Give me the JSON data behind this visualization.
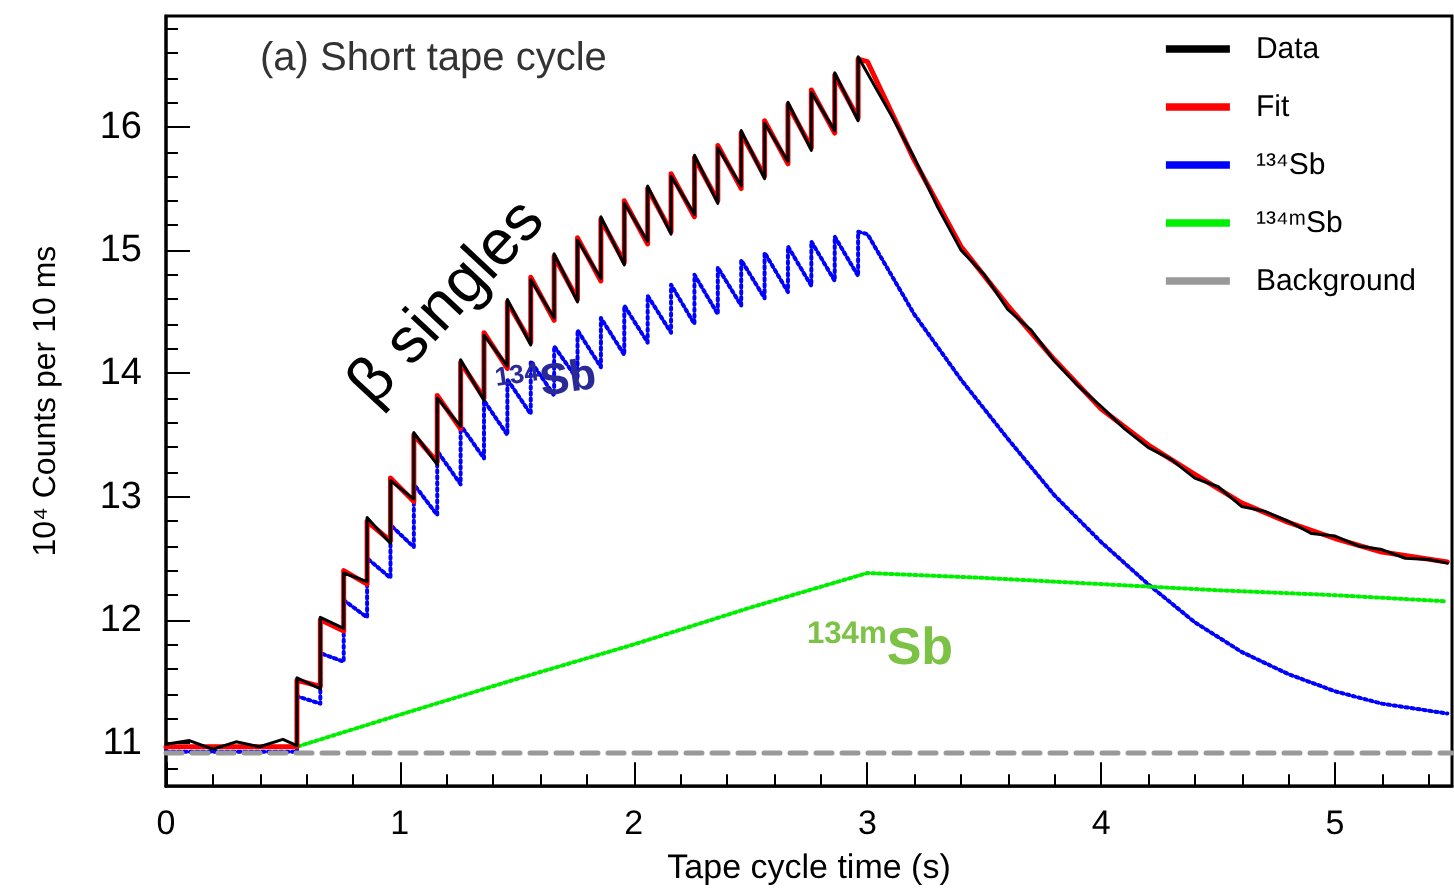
{
  "chart_data": {
    "type": "line",
    "title": "(a) Short tape cycle",
    "xlabel": "Tape cycle time (s)",
    "ylabel": "10⁴ Counts per 10 ms",
    "xlim": [
      0,
      5.5
    ],
    "ylim": [
      10.65,
      16.9
    ],
    "xticks": [
      0,
      1,
      2,
      3,
      4,
      5
    ],
    "yticks": [
      11,
      12,
      13,
      14,
      15,
      16
    ],
    "grid": false,
    "legend": "top right",
    "marker": "none",
    "annotations": [
      "β singles",
      "$^{134}$Sb",
      "$^{134m}$Sb"
    ],
    "series": [
      {
        "name": "Data",
        "color": "#000000",
        "line_style": "solid",
        "x": [
          0,
          0.1,
          0.2,
          0.3,
          0.4,
          0.5,
          0.56,
          0.56,
          0.66,
          0.66,
          0.76,
          0.76,
          0.86,
          0.86,
          0.96,
          0.96,
          1.06,
          1.06,
          1.16,
          1.16,
          1.26,
          1.26,
          1.36,
          1.36,
          1.46,
          1.46,
          1.56,
          1.56,
          1.66,
          1.66,
          1.76,
          1.76,
          1.86,
          1.86,
          1.96,
          1.96,
          2.06,
          2.06,
          2.16,
          2.16,
          2.26,
          2.26,
          2.36,
          2.36,
          2.46,
          2.46,
          2.56,
          2.56,
          2.66,
          2.66,
          2.76,
          2.76,
          2.86,
          2.86,
          2.96,
          2.96,
          3.1,
          3.2,
          3.3,
          3.4,
          3.5,
          3.6,
          3.7,
          3.8,
          3.9,
          4.0,
          4.1,
          4.2,
          4.3,
          4.4,
          4.5,
          4.6,
          4.7,
          4.8,
          4.9,
          5.0,
          5.1,
          5.2,
          5.3,
          5.4,
          5.48
        ],
        "values": [
          10.99,
          11.02,
          10.95,
          11.01,
          10.97,
          11.03,
          10.98,
          11.53,
          11.44,
          12.02,
          11.93,
          12.38,
          12.31,
          12.83,
          12.62,
          13.13,
          12.98,
          13.52,
          13.26,
          13.8,
          13.57,
          14.11,
          13.78,
          14.31,
          14.06,
          14.6,
          14.23,
          14.76,
          14.45,
          14.97,
          14.58,
          15.08,
          14.77,
          15.27,
          14.88,
          15.38,
          15.07,
          15.52,
          15.13,
          15.6,
          15.29,
          15.77,
          15.38,
          15.83,
          15.52,
          15.97,
          15.58,
          16.03,
          15.72,
          16.2,
          15.81,
          16.28,
          15.97,
          16.44,
          16.05,
          16.57,
          16.1,
          15.75,
          15.35,
          15.0,
          14.8,
          14.52,
          14.35,
          14.1,
          13.9,
          13.73,
          13.55,
          13.4,
          13.3,
          13.15,
          13.08,
          12.92,
          12.88,
          12.8,
          12.7,
          12.68,
          12.6,
          12.57,
          12.5,
          12.49,
          12.46
        ]
      },
      {
        "name": "Fit",
        "color": "#ff0000",
        "line_style": "solid",
        "x": [
          0,
          0.56,
          0.56,
          0.66,
          0.66,
          0.76,
          0.76,
          0.86,
          0.86,
          0.96,
          0.96,
          1.06,
          1.06,
          1.16,
          1.16,
          1.26,
          1.26,
          1.36,
          1.36,
          1.46,
          1.46,
          1.56,
          1.56,
          1.66,
          1.66,
          1.76,
          1.76,
          1.86,
          1.86,
          1.96,
          1.96,
          2.06,
          2.06,
          2.16,
          2.16,
          2.26,
          2.26,
          2.36,
          2.36,
          2.46,
          2.46,
          2.56,
          2.56,
          2.66,
          2.66,
          2.76,
          2.76,
          2.86,
          2.86,
          2.96,
          2.96,
          3.0,
          3.2,
          3.4,
          3.6,
          3.8,
          4.0,
          4.2,
          4.4,
          4.6,
          4.8,
          5.0,
          5.2,
          5.48
        ],
        "values": [
          10.97,
          10.97,
          11.51,
          11.46,
          12.0,
          11.91,
          12.4,
          12.29,
          12.8,
          12.64,
          13.15,
          12.96,
          13.5,
          13.28,
          13.82,
          13.55,
          14.09,
          13.8,
          14.33,
          14.04,
          14.58,
          14.25,
          14.78,
          14.43,
          14.95,
          14.6,
          15.1,
          14.75,
          15.25,
          14.9,
          15.4,
          15.05,
          15.5,
          15.15,
          15.62,
          15.27,
          15.75,
          15.4,
          15.85,
          15.5,
          15.95,
          15.6,
          16.05,
          15.7,
          16.18,
          15.83,
          16.3,
          15.95,
          16.42,
          16.07,
          16.55,
          16.53,
          15.73,
          15.03,
          14.55,
          14.11,
          13.71,
          13.42,
          13.18,
          12.95,
          12.79,
          12.66,
          12.55,
          12.47
        ]
      },
      {
        "name": "¹³⁴Sb",
        "color": "#0000ff",
        "line_style": "dotted",
        "x": [
          0,
          0.56,
          0.56,
          0.66,
          0.66,
          0.76,
          0.76,
          0.86,
          0.86,
          0.96,
          0.96,
          1.06,
          1.06,
          1.16,
          1.16,
          1.26,
          1.26,
          1.36,
          1.36,
          1.46,
          1.46,
          1.56,
          1.56,
          1.66,
          1.66,
          1.76,
          1.76,
          1.86,
          1.86,
          1.96,
          1.96,
          2.06,
          2.06,
          2.16,
          2.16,
          2.26,
          2.26,
          2.36,
          2.36,
          2.46,
          2.46,
          2.56,
          2.56,
          2.66,
          2.66,
          2.76,
          2.76,
          2.86,
          2.86,
          2.96,
          2.96,
          3.0,
          3.2,
          3.4,
          3.6,
          3.8,
          4.0,
          4.2,
          4.4,
          4.6,
          4.8,
          5.0,
          5.2,
          5.48
        ],
        "values": [
          10.93,
          10.93,
          11.38,
          11.32,
          11.73,
          11.66,
          12.16,
          12.02,
          12.5,
          12.34,
          12.77,
          12.59,
          13.1,
          12.85,
          13.37,
          13.1,
          13.58,
          13.31,
          13.78,
          13.5,
          13.95,
          13.67,
          14.1,
          13.82,
          14.22,
          13.95,
          14.35,
          14.05,
          14.45,
          14.15,
          14.55,
          14.25,
          14.63,
          14.33,
          14.72,
          14.4,
          14.8,
          14.48,
          14.86,
          14.55,
          14.92,
          14.61,
          14.98,
          14.66,
          15.03,
          14.71,
          15.07,
          14.75,
          15.11,
          14.79,
          15.15,
          15.13,
          14.48,
          13.95,
          13.47,
          13.01,
          12.63,
          12.29,
          11.98,
          11.74,
          11.56,
          11.42,
          11.32,
          11.24
        ]
      },
      {
        "name": "¹³⁴ᵐSb",
        "color": "#00ee00",
        "line_style": "dotted",
        "x": [
          0,
          0.56,
          1.0,
          1.5,
          2.0,
          2.5,
          3.0,
          3.5,
          4.0,
          4.5,
          5.0,
          5.48
        ],
        "values": [
          10.97,
          10.97,
          11.23,
          11.52,
          11.8,
          12.1,
          12.38,
          12.34,
          12.29,
          12.24,
          12.2,
          12.15
        ]
      },
      {
        "name": "Background",
        "color": "#999999",
        "line_style": "dashed",
        "x": [
          0,
          5.5
        ],
        "values": [
          10.92,
          10.92
        ]
      }
    ]
  }
}
